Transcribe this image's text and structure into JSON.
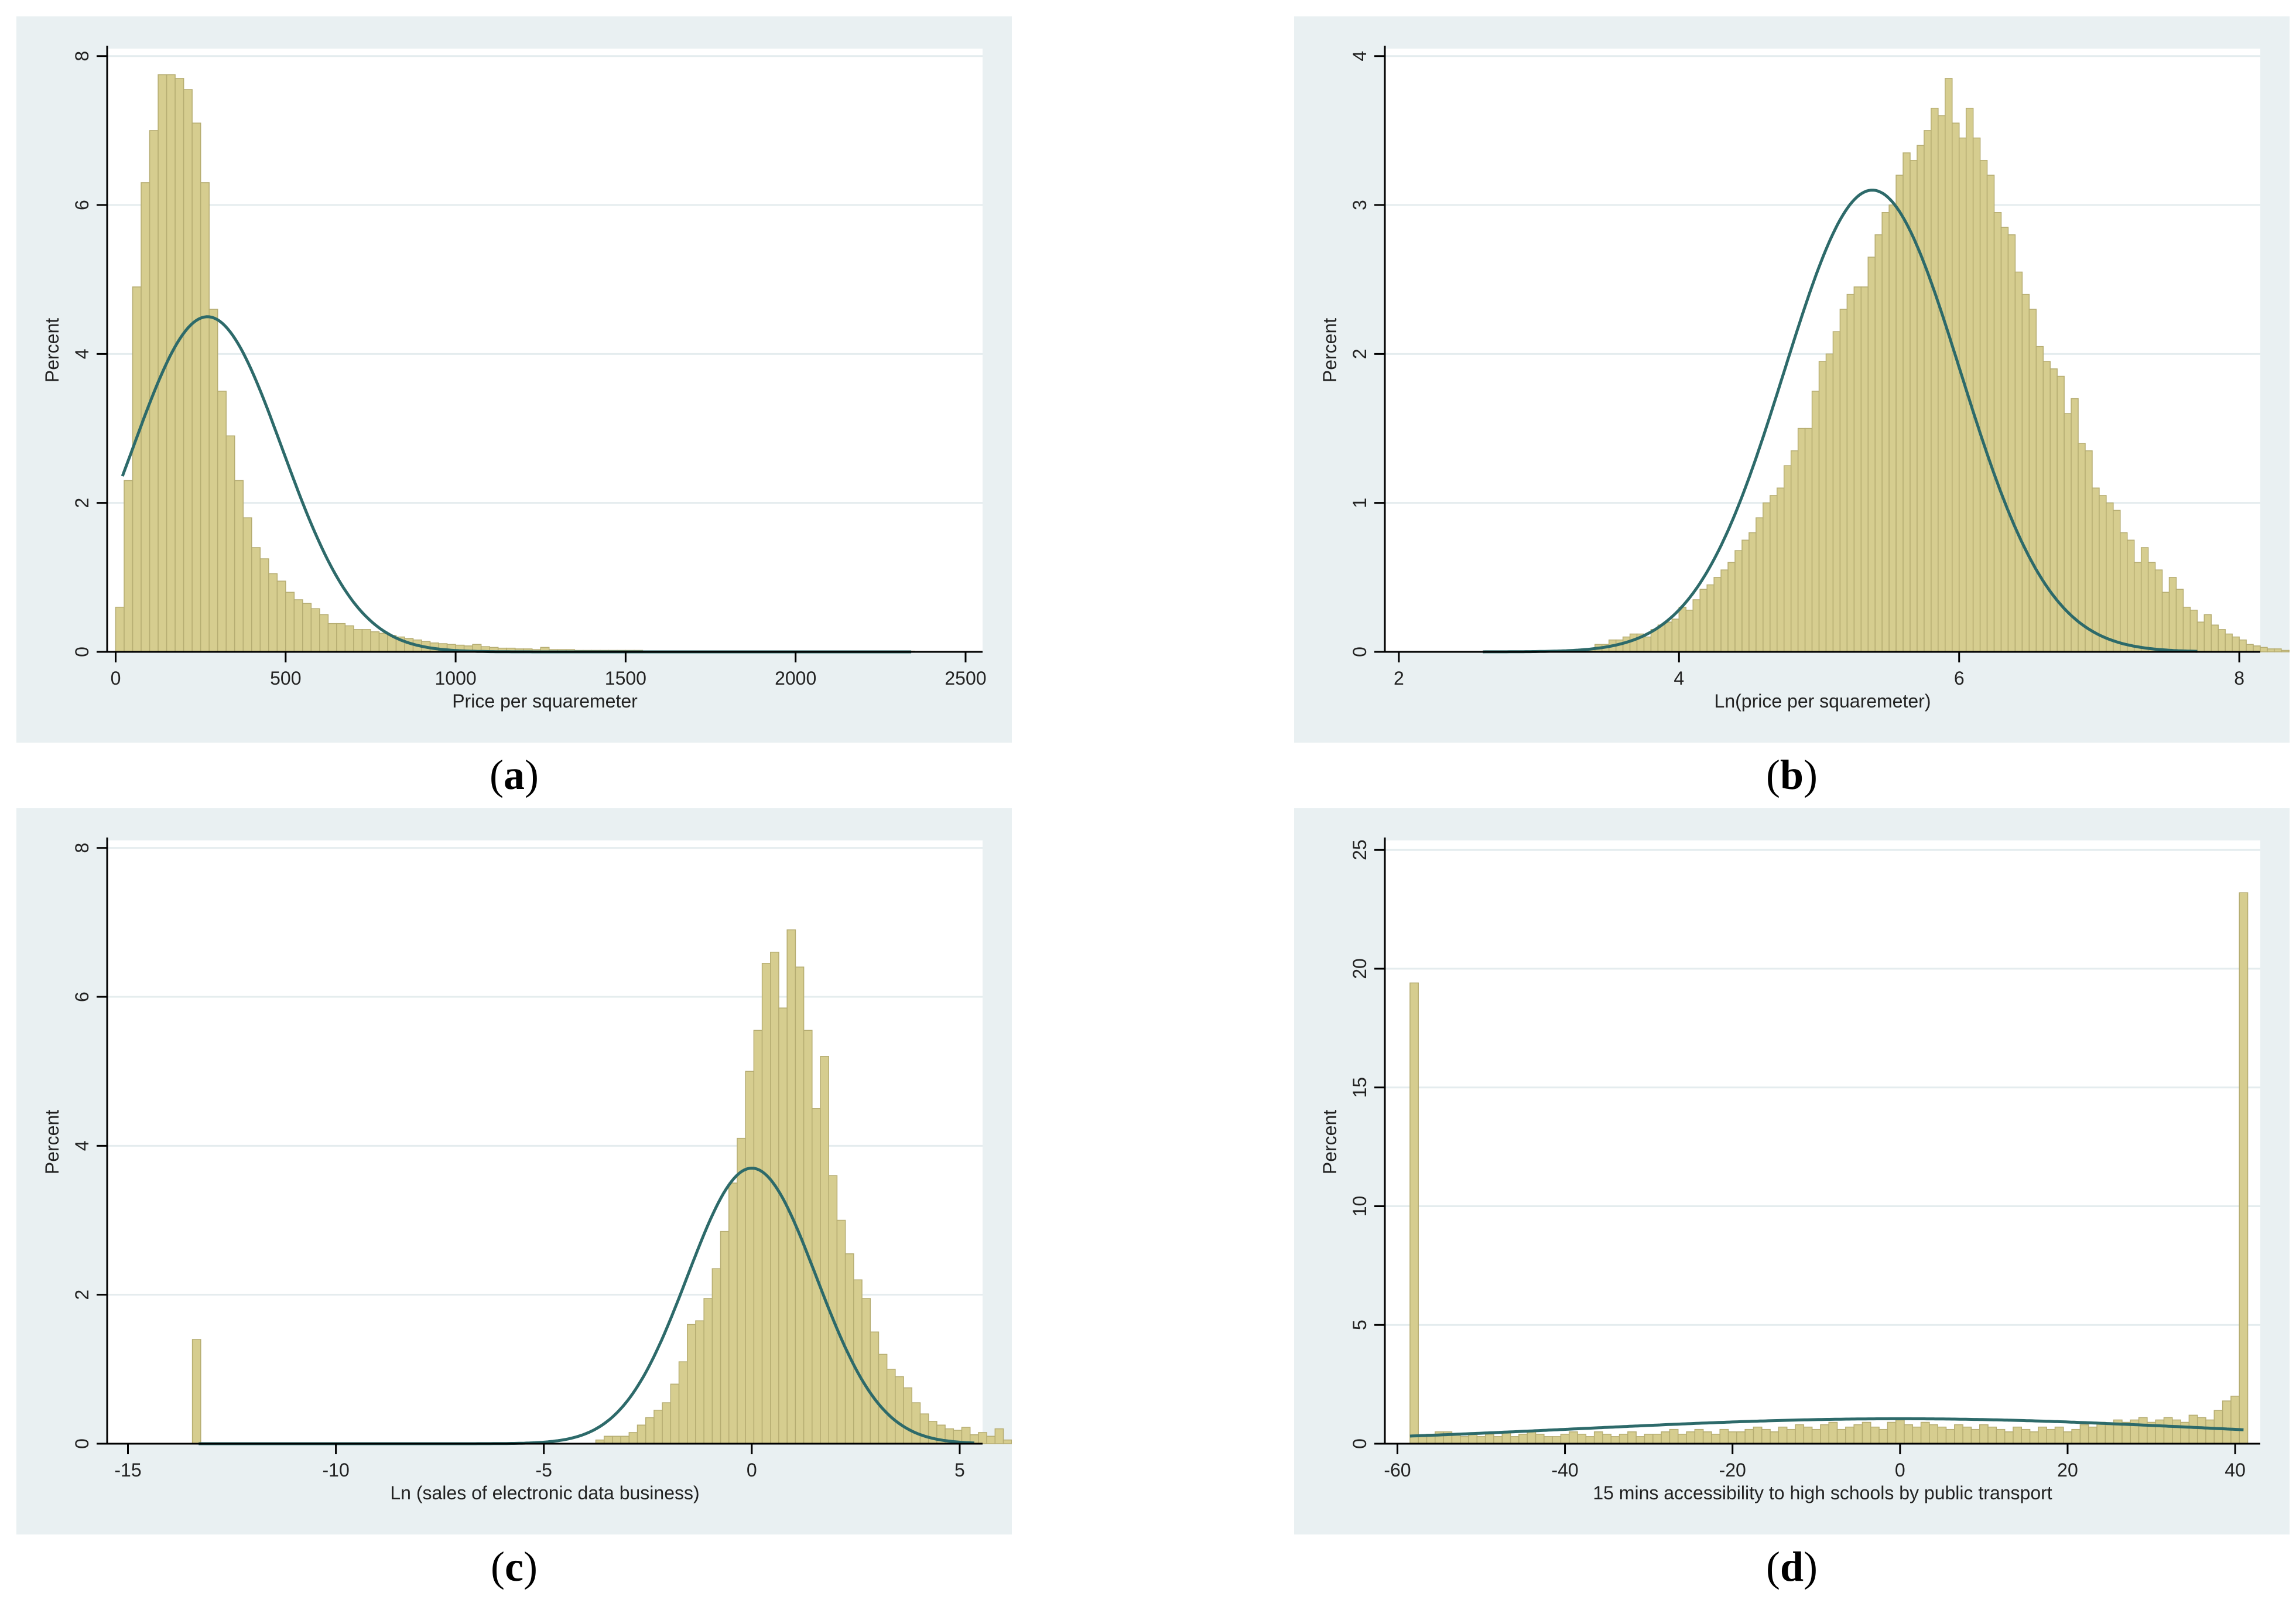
{
  "panels": [
    {
      "caption": "a"
    },
    {
      "caption": "b"
    },
    {
      "caption": "c"
    },
    {
      "caption": "d"
    }
  ],
  "colors": {
    "panel_bg": "#e9f0f2",
    "plot_bg": "#ffffff",
    "bar_fill": "#d6cd8f",
    "bar_stroke": "#b6ad72",
    "curve": "#2d6a6a",
    "grid": "#e4ecee",
    "axis": "#000000"
  },
  "chart_data": [
    {
      "type": "bar",
      "subtype": "histogram-with-normal-curve",
      "xlabel": "Price per squaremeter",
      "ylabel": "Percent",
      "xlim": [
        -25,
        2550
      ],
      "ylim": [
        0,
        8.1
      ],
      "xticks": [
        0,
        500,
        1000,
        1500,
        2000,
        2500
      ],
      "yticks": [
        0,
        2,
        4,
        6,
        8
      ],
      "grid": true,
      "bin_start": 0,
      "bin_width": 25,
      "values": [
        0.6,
        2.3,
        4.9,
        6.3,
        7.0,
        7.75,
        7.75,
        7.7,
        7.55,
        7.1,
        6.3,
        4.6,
        3.5,
        2.9,
        2.3,
        1.8,
        1.4,
        1.25,
        1.05,
        0.95,
        0.8,
        0.7,
        0.65,
        0.58,
        0.5,
        0.38,
        0.38,
        0.35,
        0.3,
        0.3,
        0.27,
        0.25,
        0.22,
        0.2,
        0.18,
        0.16,
        0.14,
        0.12,
        0.11,
        0.1,
        0.09,
        0.08,
        0.1,
        0.07,
        0.06,
        0.05,
        0.05,
        0.04,
        0.04,
        0.03,
        0.06,
        0.03,
        0.03,
        0.03,
        0.02,
        0.02,
        0.02,
        0.02,
        0.02,
        0.02,
        0.02,
        0.02,
        0.01,
        0.01,
        0.01,
        0.01,
        0.01,
        0.01,
        0.01,
        0.01,
        0.01,
        0.01,
        0.01,
        0.01,
        0.01,
        0.01,
        0.01,
        0.01,
        0.01,
        0.01,
        0.01,
        0.01,
        0.01,
        0.01,
        0.01,
        0.01,
        0.01,
        0.01,
        0.01,
        0.01,
        0.01,
        0.01,
        0.01,
        0.01
      ],
      "normal_curve": {
        "mean": 270,
        "sd": 220,
        "peak": 4.5,
        "x_range": [
          20,
          2340
        ]
      }
    },
    {
      "type": "bar",
      "subtype": "histogram-with-normal-curve",
      "xlabel": "Ln(price per squaremeter)",
      "ylabel": "Percent",
      "xlim": [
        1.9,
        8.15
      ],
      "ylim": [
        0,
        4.05
      ],
      "xticks": [
        2,
        4,
        6,
        8
      ],
      "yticks": [
        0,
        1,
        2,
        3,
        4
      ],
      "grid": true,
      "bin_start": 3.35,
      "bin_width": 0.05,
      "values": [
        0.02,
        0.05,
        0.05,
        0.08,
        0.08,
        0.1,
        0.12,
        0.12,
        0.1,
        0.15,
        0.18,
        0.2,
        0.22,
        0.3,
        0.28,
        0.35,
        0.42,
        0.45,
        0.5,
        0.55,
        0.6,
        0.68,
        0.75,
        0.8,
        0.9,
        1.0,
        1.05,
        1.1,
        1.25,
        1.35,
        1.5,
        1.5,
        1.75,
        1.95,
        2.0,
        2.15,
        2.3,
        2.4,
        2.45,
        2.45,
        2.65,
        2.8,
        2.95,
        3.0,
        3.2,
        3.35,
        3.3,
        3.4,
        3.5,
        3.65,
        3.6,
        3.85,
        3.55,
        3.45,
        3.65,
        3.45,
        3.3,
        3.2,
        2.95,
        2.85,
        2.8,
        2.55,
        2.4,
        2.3,
        2.05,
        1.95,
        1.9,
        1.85,
        1.6,
        1.7,
        1.4,
        1.35,
        1.1,
        1.05,
        1.0,
        0.95,
        0.8,
        0.75,
        0.6,
        0.7,
        0.6,
        0.55,
        0.4,
        0.5,
        0.42,
        0.3,
        0.28,
        0.2,
        0.25,
        0.18,
        0.15,
        0.12,
        0.1,
        0.08,
        0.05,
        0.04,
        0.03,
        0.02,
        0.02,
        0.01,
        0.01
      ],
      "normal_curve": {
        "mean": 5.38,
        "sd": 0.63,
        "peak": 3.1,
        "x_range": [
          2.6,
          7.7
        ]
      }
    },
    {
      "type": "bar",
      "subtype": "histogram-with-normal-curve",
      "xlabel": "Ln (sales of electronic data business)",
      "ylabel": "Percent",
      "xlim": [
        -15.5,
        5.55
      ],
      "ylim": [
        0,
        8.1
      ],
      "xticks": [
        -15,
        -10,
        -5,
        0,
        5
      ],
      "yticks": [
        0,
        2,
        4,
        6,
        8
      ],
      "grid": true,
      "bin_start": -3.75,
      "bin_width": 0.2,
      "values": [
        0.05,
        0.1,
        0.1,
        0.1,
        0.15,
        0.25,
        0.35,
        0.45,
        0.55,
        0.8,
        1.1,
        1.6,
        1.65,
        1.95,
        2.35,
        2.85,
        3.5,
        4.1,
        5.0,
        5.55,
        6.45,
        6.6,
        5.85,
        6.9,
        6.4,
        5.55,
        4.5,
        5.2,
        3.6,
        3.0,
        2.55,
        2.2,
        1.95,
        1.5,
        1.2,
        1.0,
        0.9,
        0.75,
        0.55,
        0.4,
        0.3,
        0.25,
        0.2,
        0.18,
        0.22,
        0.12,
        0.15,
        0.1,
        0.2,
        0.05
      ],
      "outliers": [
        {
          "x": -13.35,
          "value": 1.4
        }
      ],
      "normal_curve": {
        "mean": 0.0,
        "sd": 1.55,
        "peak": 3.7,
        "x_range": [
          -13.3,
          5.35
        ]
      }
    },
    {
      "type": "bar",
      "subtype": "histogram-with-normal-curve",
      "xlabel": "15 mins accessibility to high schools by public transport",
      "ylabel": "Percent",
      "xlim": [
        -61.5,
        43
      ],
      "ylim": [
        0,
        25.4
      ],
      "xticks": [
        -60,
        -40,
        -20,
        0,
        20,
        40
      ],
      "yticks": [
        0,
        5,
        10,
        15,
        20,
        25
      ],
      "grid": true,
      "bin_start": -58.5,
      "bin_width": 1,
      "values": [
        19.4,
        0.3,
        0.4,
        0.5,
        0.5,
        0.4,
        0.3,
        0.4,
        0.3,
        0.4,
        0.3,
        0.5,
        0.3,
        0.4,
        0.5,
        0.4,
        0.3,
        0.3,
        0.4,
        0.5,
        0.4,
        0.3,
        0.5,
        0.4,
        0.3,
        0.4,
        0.5,
        0.3,
        0.4,
        0.4,
        0.5,
        0.6,
        0.4,
        0.5,
        0.6,
        0.5,
        0.4,
        0.6,
        0.5,
        0.5,
        0.6,
        0.7,
        0.6,
        0.5,
        0.7,
        0.6,
        0.8,
        0.7,
        0.6,
        0.8,
        0.9,
        0.6,
        0.7,
        0.8,
        0.9,
        0.7,
        0.6,
        0.9,
        1.0,
        0.8,
        0.7,
        0.9,
        0.8,
        0.7,
        0.6,
        0.8,
        0.7,
        0.6,
        0.8,
        0.7,
        0.6,
        0.5,
        0.7,
        0.6,
        0.5,
        0.7,
        0.6,
        0.7,
        0.5,
        0.6,
        0.8,
        0.7,
        0.9,
        0.8,
        1.0,
        0.9,
        1.0,
        1.1,
        0.9,
        1.0,
        1.1,
        1.0,
        0.9,
        1.2,
        1.1,
        1.0,
        1.4,
        1.8,
        2.0,
        23.2
      ],
      "normal_curve": {
        "mean": 0.0,
        "sd": 38.0,
        "peak": 1.05,
        "x_range": [
          -58.5,
          41
        ]
      }
    }
  ]
}
